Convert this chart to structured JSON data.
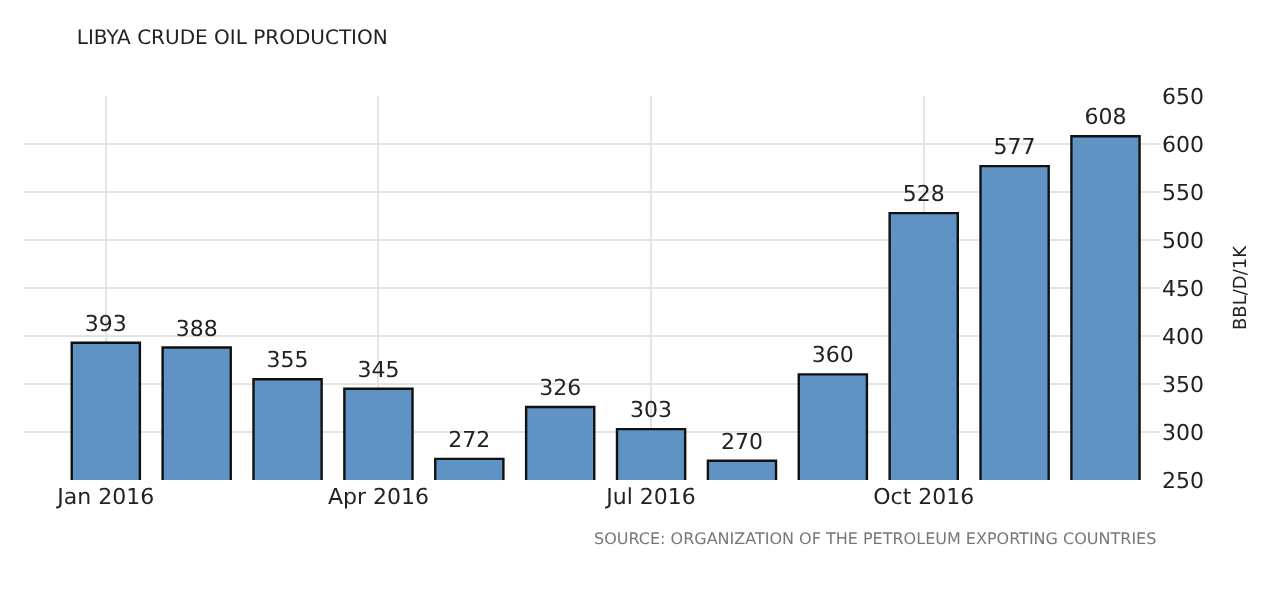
{
  "chart_data": {
    "type": "bar",
    "title": "LIBYA CRUDE OIL PRODUCTION",
    "ylabel": "BBL/D/1K",
    "categories": [
      "Jan 2016",
      null,
      null,
      "Apr 2016",
      null,
      null,
      "Jul 2016",
      null,
      null,
      "Oct 2016",
      null,
      null
    ],
    "values": [
      393,
      388,
      355,
      345,
      272,
      326,
      303,
      270,
      360,
      528,
      577,
      608
    ],
    "color": "#5f93c4",
    "ylim": [
      250,
      650
    ],
    "yticks": [
      250,
      300,
      350,
      400,
      450,
      500,
      550,
      600,
      650
    ],
    "grid": true,
    "data_labels": true,
    "annotations": [
      "SOURCE: ORGANIZATION OF THE PETROLEUM EXPORTING COUNTRIES"
    ]
  }
}
